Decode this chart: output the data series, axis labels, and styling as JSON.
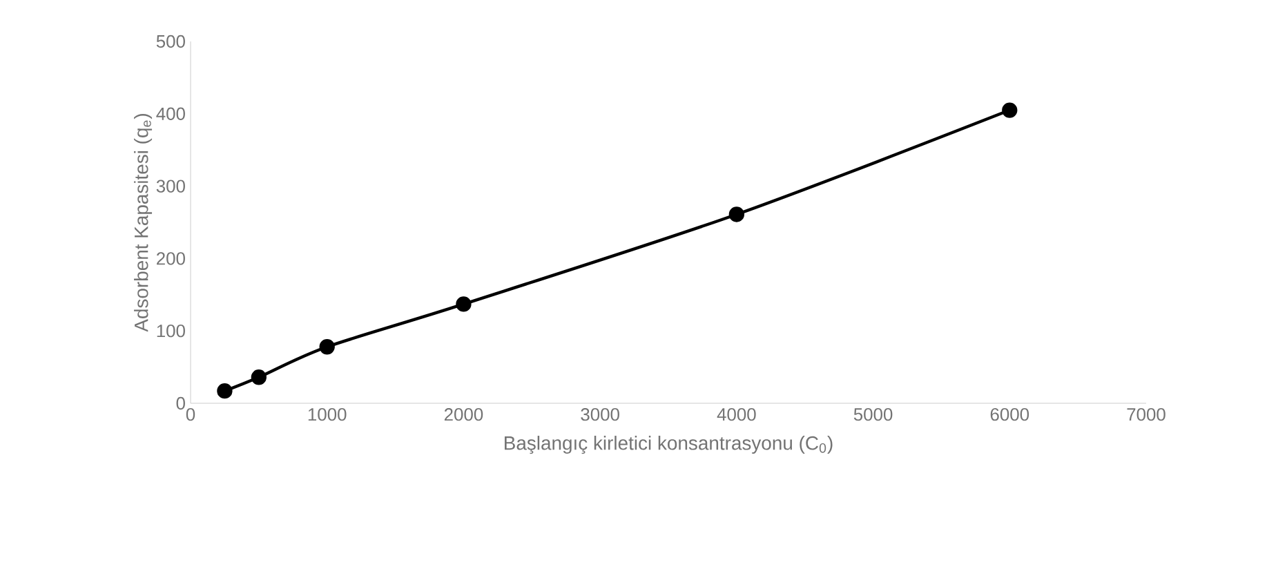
{
  "chart_data": {
    "type": "line",
    "xlabel": "Başlangıç kirletici konsantrasyonu (C$_{0}$)",
    "ylabel": "Adsorbent Kapasitesi (q$_{e}$)",
    "x": [
      250,
      500,
      1000,
      2000,
      4000,
      6000
    ],
    "series": [
      {
        "color": "#000000",
        "values": [
          17,
          36,
          78,
          137,
          261,
          405
        ]
      }
    ],
    "xlim": [
      0,
      7000
    ],
    "xticks": [
      0,
      1000,
      2000,
      3000,
      4000,
      5000,
      6000,
      7000
    ],
    "ylim": [
      0,
      500
    ],
    "yticks": [
      0,
      100,
      200,
      300,
      400,
      500
    ],
    "grid": false,
    "marker": "circle",
    "line_style": "solid"
  }
}
